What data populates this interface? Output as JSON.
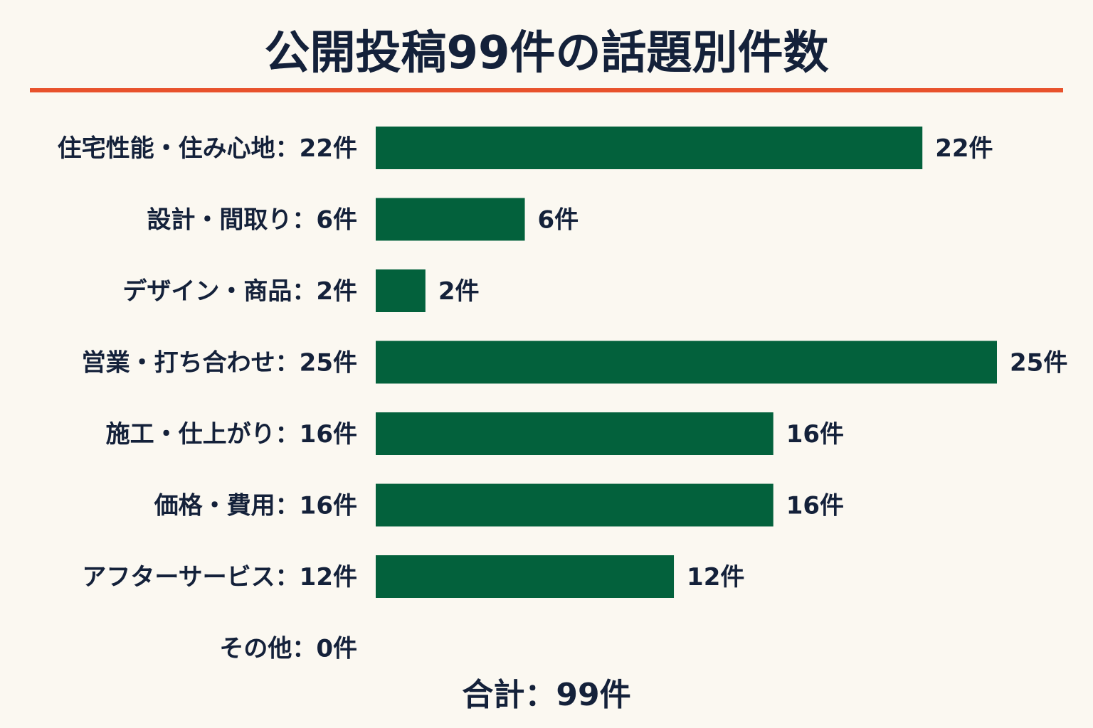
{
  "colors": {
    "background": "#fbf8f1",
    "text": "#14213a",
    "bar": "#03613c",
    "title_rule": "#e8522c"
  },
  "chart_data": {
    "type": "bar",
    "orientation": "horizontal",
    "title": "公開投稿99件の話題別件数",
    "categories": [
      "住宅性能・住み心地",
      "設計・間取り",
      "デザイン・商品",
      "営業・打ち合わせ",
      "施工・仕上がり",
      "価格・費用",
      "アフターサービス",
      "その他"
    ],
    "category_labels": [
      "住宅性能・住み心地：22件",
      "設計・間取り：6件",
      "デザイン・商品：2件",
      "営業・打ち合わせ：25件",
      "施工・仕上がり：16件",
      "価格・費用：16件",
      "アフターサービス：12件",
      "その他：0件"
    ],
    "values": [
      22,
      6,
      2,
      25,
      16,
      16,
      12,
      0
    ],
    "data_labels": [
      "22件",
      "6件",
      "2件",
      "25件",
      "16件",
      "16件",
      "12件",
      ""
    ],
    "unit": "件",
    "xlim": [
      0,
      25
    ],
    "grid": false,
    "total_label": "合計：99件"
  }
}
